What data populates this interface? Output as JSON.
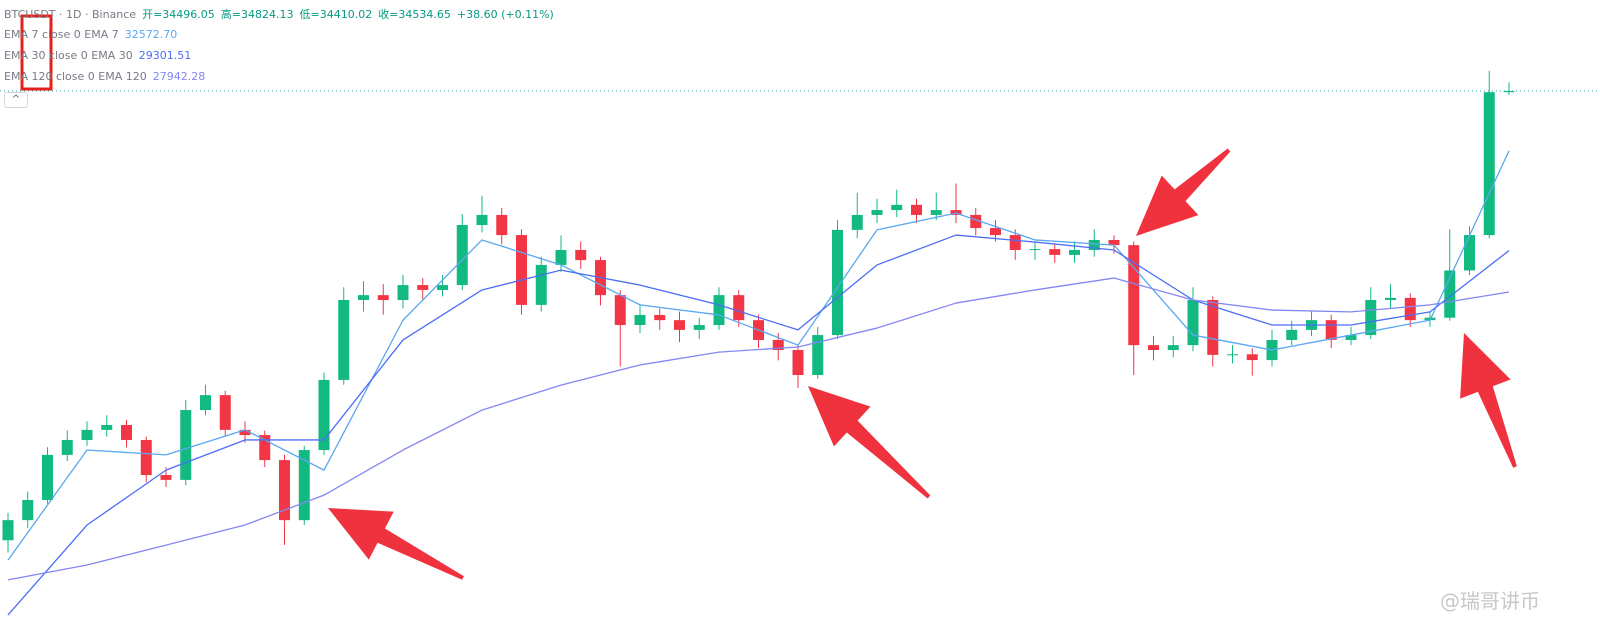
{
  "chart_data": {
    "type": "candlestick",
    "symbol": "BTCUSDT · 1D · Binance",
    "ohlc_labels": [
      "开=34496.05",
      "高=34824.13",
      "低=34410.02",
      "收=34534.65",
      "+38.60 (+0.11%)"
    ],
    "indicators": [
      {
        "name": "EMA 7 close 0 EMA 7",
        "value_label": "32572.70",
        "color": "#5aa8f0"
      },
      {
        "name": "EMA 30 close 0 EMA 30",
        "value_label": "29301.51",
        "color": "#4c6ef5"
      },
      {
        "name": "EMA 120 close 0 EMA 120",
        "value_label": "27942.28",
        "color": "#8487f2"
      }
    ],
    "watermark": "@瑞哥讲币",
    "up_color": "#12b981",
    "down_color": "#f23645",
    "ylim": [
      16660,
      37520
    ],
    "open": [
      19800,
      20460,
      21120,
      22600,
      23090,
      23420,
      23580,
      23090,
      21940,
      21780,
      24070,
      24560,
      23420,
      23250,
      22430,
      20460,
      22760,
      25060,
      27680,
      27840,
      27680,
      28170,
      28010,
      28170,
      30140,
      30470,
      29810,
      27520,
      28830,
      29320,
      28990,
      27840,
      26860,
      27190,
      27020,
      26700,
      26860,
      27840,
      27020,
      26370,
      26040,
      25220,
      26530,
      29980,
      30470,
      30630,
      30800,
      30470,
      30630,
      30470,
      30040,
      29810,
      29320,
      29350,
      29160,
      29320,
      29650,
      29480,
      26200,
      26040,
      26200,
      27680,
      25880,
      25900,
      25710,
      26370,
      26700,
      27020,
      26370,
      26530,
      27680,
      27750,
      27020,
      27100,
      28650,
      29810,
      34496.05
    ],
    "high": [
      20700,
      21400,
      22850,
      23400,
      23700,
      23900,
      23750,
      23200,
      22200,
      24400,
      24900,
      24700,
      23700,
      23400,
      22600,
      22900,
      25300,
      28100,
      28300,
      28200,
      28500,
      28400,
      28500,
      30500,
      31100,
      30700,
      30000,
      29100,
      29800,
      29600,
      29100,
      28000,
      27500,
      27400,
      27300,
      27100,
      28100,
      28000,
      27200,
      26600,
      26200,
      26800,
      30300,
      31200,
      31000,
      31300,
      31000,
      31200,
      31500,
      30700,
      30300,
      30000,
      29600,
      29500,
      29600,
      30000,
      29800,
      29600,
      26500,
      26500,
      28100,
      27800,
      26200,
      26100,
      26700,
      27000,
      27300,
      27200,
      26800,
      28100,
      28200,
      27900,
      27300,
      30000,
      30100,
      35200,
      34824.13
    ],
    "low": [
      19400,
      20200,
      21000,
      22400,
      22900,
      23200,
      22850,
      21700,
      21550,
      21600,
      23900,
      23200,
      23000,
      22200,
      19650,
      20300,
      22600,
      24900,
      27300,
      27200,
      27400,
      27700,
      27800,
      28000,
      29900,
      29500,
      27200,
      27300,
      28600,
      28700,
      27500,
      25500,
      26600,
      26700,
      26300,
      26400,
      26700,
      26800,
      26100,
      25700,
      24800,
      25100,
      26400,
      29700,
      30200,
      30400,
      30200,
      30300,
      30200,
      29800,
      29600,
      29000,
      29000,
      28900,
      28900,
      29100,
      29200,
      25220,
      25700,
      25800,
      26000,
      25500,
      25600,
      25200,
      25500,
      26200,
      26500,
      26100,
      26200,
      26400,
      27400,
      26800,
      26800,
      27000,
      28500,
      29700,
      34410.02
    ],
    "close": [
      20460,
      21120,
      22600,
      23090,
      23420,
      23580,
      23090,
      21940,
      21780,
      24070,
      24560,
      23420,
      23250,
      22430,
      20460,
      22760,
      25060,
      27680,
      27840,
      27680,
      28170,
      28010,
      28170,
      30140,
      30470,
      29810,
      27520,
      28830,
      29320,
      28990,
      27840,
      26860,
      27190,
      27020,
      26700,
      26860,
      27840,
      27020,
      26370,
      26040,
      25220,
      26530,
      29980,
      30470,
      30630,
      30800,
      30470,
      30630,
      30470,
      30040,
      29810,
      29320,
      29350,
      29160,
      29320,
      29650,
      29480,
      26200,
      26040,
      26200,
      27680,
      25880,
      25900,
      25710,
      26370,
      26700,
      27020,
      26370,
      26530,
      27680,
      27750,
      27020,
      27100,
      28650,
      29810,
      34496.05,
      34534.65
    ],
    "ema_x": [
      0,
      4,
      8,
      12,
      16,
      20,
      24,
      28,
      32,
      36,
      40,
      44,
      48,
      52,
      56,
      60,
      64,
      68,
      72,
      76
    ],
    "ema_series": [
      {
        "name": "EMA 7",
        "values": [
          19150,
          22760,
          22600,
          23420,
          22100,
          27020,
          29650,
          28830,
          27520,
          27190,
          26200,
          29980,
          30530,
          29650,
          29480,
          26530,
          26040,
          26530,
          27020,
          32572.7
        ]
      },
      {
        "name": "EMA 30",
        "values": [
          17350,
          20300,
          22100,
          23090,
          23090,
          26370,
          28010,
          28660,
          28170,
          27520,
          26700,
          28830,
          29810,
          29580,
          29320,
          27680,
          26860,
          26860,
          27290,
          29301.51
        ]
      },
      {
        "name": "EMA 120",
        "values": [
          18500,
          18990,
          19640,
          20300,
          21280,
          22760,
          24070,
          24890,
          25550,
          25970,
          26140,
          26760,
          27580,
          28010,
          28400,
          27680,
          27350,
          27290,
          27520,
          27942.28
        ]
      }
    ]
  }
}
